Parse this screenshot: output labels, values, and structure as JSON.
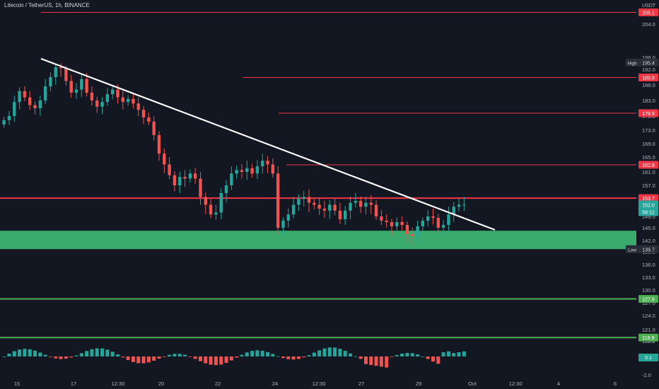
{
  "header": {
    "title": "Litecoin / TetherUS, 1h, BINANCE",
    "currency": "USDT"
  },
  "colors": {
    "background": "#131722",
    "up_candle": "#26a69a",
    "down_candle": "#ef5350",
    "resistance_line": "#f23645",
    "support_line": "#4caf50",
    "support_zone": "#3cb371",
    "trendline": "#ffffff",
    "axis_text": "#b2b5be"
  },
  "chart_data": {
    "type": "candlestick",
    "symbol": "Litecoin / TetherUS",
    "interval": "1h",
    "exchange": "BINANCE",
    "y_axis_ticks": [
      204.0,
      198.0,
      192.0,
      188.0,
      183.0,
      178.0,
      173.0,
      169.0,
      165.0,
      161.0,
      157.0,
      153.0,
      149.0,
      145.0,
      142.0,
      139.0,
      136.0,
      133.0,
      130.0,
      127.0,
      124.0,
      121.0,
      118.0,
      115.8
    ],
    "y_axis_tick_labels": [
      "204.0",
      "198.0",
      "192.0",
      "188.0",
      "183.0",
      "178.0",
      "173.0",
      "169.0",
      "165.0",
      "161.0",
      "157.0",
      "153.0",
      "149.0",
      "145.0",
      "142.0",
      "139.0",
      "136.0",
      "133.0",
      "130.0",
      "127.0",
      "124.0",
      "121.0",
      "118.0",
      "115.8"
    ],
    "x_axis_labels": [
      "15",
      "17",
      "12:30",
      "20",
      "22",
      "24",
      "12:30",
      "27",
      "29",
      "Oct",
      "12:30",
      "4",
      "6"
    ],
    "price_labels": [
      {
        "label": "206.1",
        "value": 206.1,
        "kind": "resistance"
      },
      {
        "label": "High",
        "value": 195.4,
        "kind": "high",
        "text": "195.4"
      },
      {
        "label": "189.9",
        "value": 189.9,
        "kind": "resistance"
      },
      {
        "label": "178.9",
        "value": 178.9,
        "kind": "resistance"
      },
      {
        "label": "162.9",
        "value": 162.9,
        "kind": "resistance"
      },
      {
        "label": "153.7",
        "value": 153.7,
        "kind": "resistance"
      },
      {
        "label": "152.0",
        "value": 152.0,
        "kind": "current",
        "countdown": "58:12"
      },
      {
        "label": "Low",
        "value": 139.7,
        "kind": "low",
        "text": "139.7"
      },
      {
        "label": "127.9",
        "value": 127.9,
        "kind": "support"
      },
      {
        "label": "118.9",
        "value": 118.9,
        "kind": "support"
      }
    ],
    "support_zone": {
      "from": 139.7,
      "to": 144.3
    },
    "trendline": {
      "start_x": "15 ~18:00",
      "start_y": 197.3,
      "end_x": "30 ~12:00",
      "end_y": 144.5
    },
    "closes_approx": [
      176.5,
      178.0,
      182.5,
      186.0,
      184.0,
      181.5,
      180.5,
      183.0,
      187.5,
      190.0,
      193.0,
      192.5,
      189.0,
      185.5,
      186.5,
      189.5,
      185.5,
      183.0,
      181.0,
      182.5,
      185.0,
      186.5,
      184.0,
      182.5,
      183.5,
      182.0,
      180.0,
      177.5,
      176.0,
      171.5,
      166.0,
      163.0,
      160.0,
      157.0,
      159.5,
      159.0,
      160.5,
      159.0,
      154.0,
      152.0,
      149.5,
      150.0,
      155.0,
      157.0,
      160.5,
      161.5,
      161.0,
      162.0,
      160.5,
      162.5,
      164.0,
      163.0,
      160.5,
      145.0,
      147.5,
      149.5,
      152.0,
      153.5,
      154.0,
      152.5,
      152.0,
      151.0,
      150.5,
      152.0,
      150.5,
      148.0,
      150.5,
      152.5,
      153.0,
      151.5,
      152.5,
      152.0,
      149.0,
      147.5,
      147.0,
      145.5,
      147.0,
      146.0,
      143.5,
      143.0,
      145.5,
      147.5,
      149.0,
      148.5,
      145.0,
      146.0,
      149.5,
      151.5,
      152.0,
      152.0
    ],
    "oscillator": {
      "type": "histogram",
      "tick_labels": [
        "0.1",
        "-2.0"
      ],
      "current_value": "0.1"
    }
  }
}
